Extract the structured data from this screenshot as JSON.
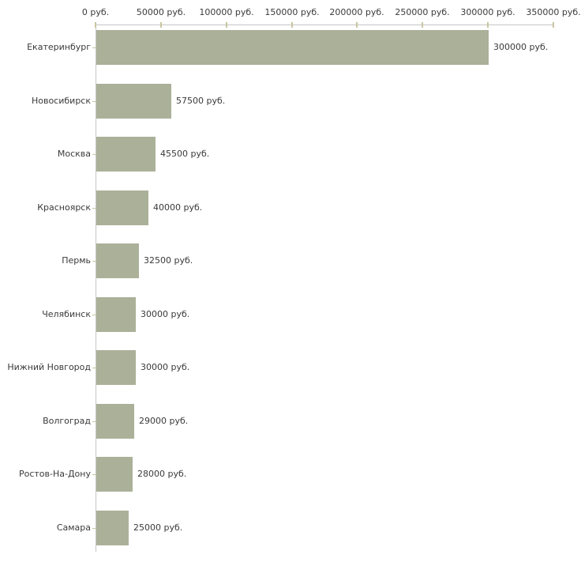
{
  "chart_data": {
    "type": "bar",
    "orientation": "horizontal",
    "title": "",
    "xlabel": "",
    "ylabel": "",
    "units": "руб.",
    "categories": [
      "Екатеринбург",
      "Новосибирск",
      "Москва",
      "Красноярск",
      "Пермь",
      "Челябинск",
      "Нижний Новгород",
      "Волгоград",
      "Ростов-На-Дону",
      "Самара"
    ],
    "values": [
      300000,
      57500,
      45500,
      40000,
      32500,
      30000,
      30000,
      29000,
      28000,
      25000
    ],
    "value_labels": [
      "300000 руб.",
      "57500 руб.",
      "45500 руб.",
      "40000 руб.",
      "32500 руб.",
      "30000 руб.",
      "30000 руб.",
      "29000 руб.",
      "28000 руб.",
      "25000 руб."
    ],
    "x_ticks": [
      {
        "value": 0,
        "label": "0 руб."
      },
      {
        "value": 50000,
        "label": "50000 руб."
      },
      {
        "value": 100000,
        "label": "100000 руб."
      },
      {
        "value": 150000,
        "label": "150000 руб."
      },
      {
        "value": 200000,
        "label": "200000 руб."
      },
      {
        "value": 250000,
        "label": "250000 руб."
      },
      {
        "value": 300000,
        "label": "300000 руб."
      },
      {
        "value": 350000,
        "label": "350000 руб."
      }
    ],
    "xlim": [
      0,
      350000
    ],
    "grid": false,
    "legend": false,
    "colors": {
      "bar": "#abb199",
      "axis_line": "#c6c6c6",
      "tick_mark": "#c9c5a0",
      "text": "#3a3a3a",
      "background": "#ffffff"
    }
  }
}
